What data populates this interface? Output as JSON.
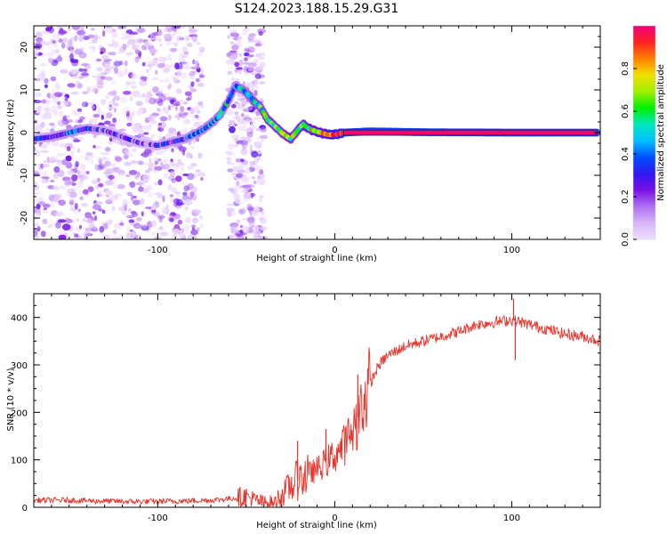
{
  "title": "S124.2023.188.15.29.G31",
  "chart_data": [
    {
      "type": "heatmap",
      "xlabel": "Height of straight line (km)",
      "ylabel": "Frequency (Hz)",
      "xlim": [
        -170,
        150
      ],
      "ylim": [
        -25,
        25
      ],
      "xticks": [
        -100,
        0,
        100
      ],
      "yticks": [
        -20,
        -10,
        0,
        10,
        20
      ],
      "colorbar": {
        "label": "Normalized spectral amplitude",
        "range": [
          0,
          1
        ],
        "ticks": [
          "0.0",
          "0.2",
          "0.4",
          "0.6",
          "0.8"
        ],
        "colormap": [
          "#f0e0ff",
          "#d8b4f8",
          "#b070f0",
          "#7a10e8",
          "#3018f0",
          "#0050ff",
          "#00c0ff",
          "#00e8c0",
          "#00f000",
          "#a0f000",
          "#f0e000",
          "#ff8000",
          "#ff2020",
          "#f00080"
        ]
      },
      "ridge": {
        "name": "Doppler ridge",
        "x": [
          -170,
          -160,
          -150,
          -140,
          -130,
          -120,
          -110,
          -100,
          -90,
          -85,
          -80,
          -75,
          -70,
          -65,
          -60,
          -56,
          -52,
          -48,
          -45,
          -42,
          -38,
          -35,
          -30,
          -25,
          -22,
          -18,
          -15,
          -12,
          -8,
          -4,
          0,
          5,
          20,
          50,
          100,
          148
        ],
        "y": [
          -1.5,
          -1,
          0,
          1,
          0.5,
          -1,
          -2.5,
          -3,
          -2,
          -1.5,
          -0.5,
          0.5,
          2,
          4,
          7.5,
          11,
          10,
          8.5,
          7,
          6,
          3,
          2,
          0,
          -1.5,
          0,
          2,
          1,
          0.5,
          0,
          -0.5,
          -0.5,
          0,
          0.3,
          0.1,
          0,
          0
        ],
        "amplitude": [
          0.25,
          0.3,
          0.35,
          0.3,
          0.25,
          0.25,
          0.2,
          0.25,
          0.3,
          0.3,
          0.35,
          0.4,
          0.4,
          0.45,
          0.45,
          0.4,
          0.45,
          0.5,
          0.55,
          0.55,
          0.6,
          0.6,
          0.6,
          0.65,
          0.6,
          0.65,
          0.7,
          0.7,
          0.75,
          0.8,
          0.9,
          0.95,
          0.98,
          1.0,
          1.0,
          1.0
        ]
      }
    },
    {
      "type": "line",
      "xlabel": "Height of straight line (km)",
      "ylabel": "SNR (10 * v/v)",
      "xlim": [
        -170,
        150
      ],
      "ylim": [
        0,
        450
      ],
      "xticks": [
        -100,
        0,
        100
      ],
      "yticks": [
        0,
        100,
        200,
        300,
        400
      ],
      "color": "#e8332a",
      "series": [
        {
          "x": [
            -170,
            -150,
            -130,
            -110,
            -90,
            -70,
            -60,
            -50,
            -45,
            -40,
            -35,
            -30,
            -25,
            -20,
            -15,
            -10,
            -5,
            0,
            5,
            10,
            15,
            20,
            25,
            30,
            40,
            50,
            60,
            70,
            80,
            90,
            100,
            110,
            120,
            130,
            140,
            150
          ],
          "values": [
            15,
            15,
            13,
            12,
            13,
            15,
            18,
            22,
            15,
            10,
            10,
            25,
            45,
            60,
            70,
            80,
            95,
            110,
            130,
            160,
            210,
            260,
            300,
            320,
            340,
            350,
            360,
            370,
            385,
            390,
            395,
            385,
            375,
            365,
            360,
            350
          ]
        }
      ],
      "spikes": [
        {
          "x": 101,
          "value": 440
        },
        {
          "x": 102,
          "value": 310
        },
        {
          "x": 13,
          "value": 280
        },
        {
          "x": -21,
          "value": 140
        },
        {
          "x": -5,
          "value": 165
        }
      ]
    }
  ]
}
